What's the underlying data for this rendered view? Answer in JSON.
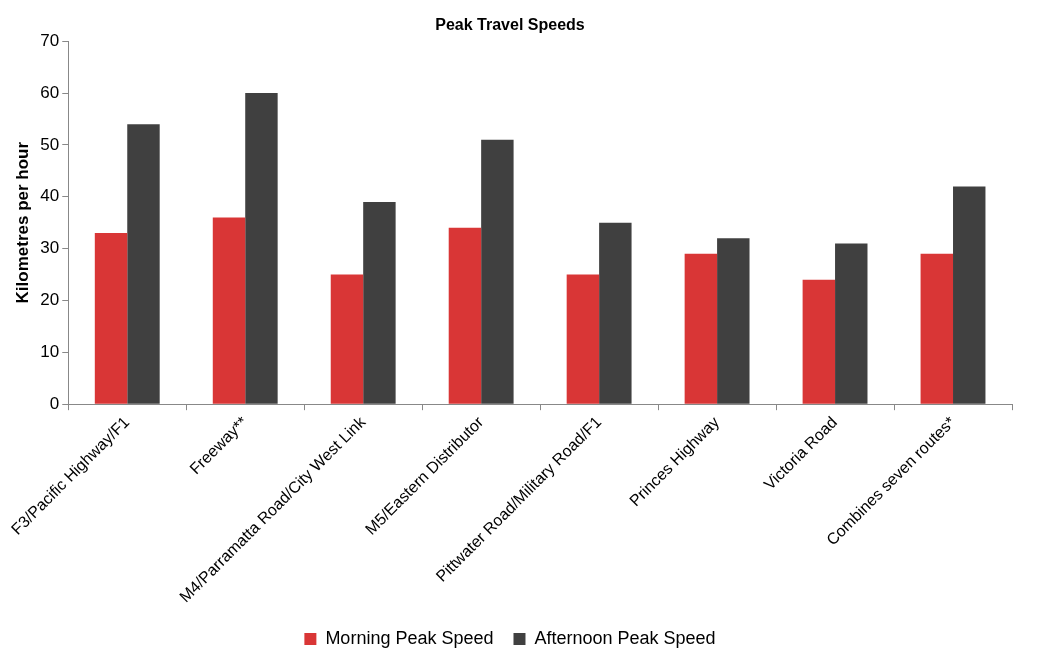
{
  "chart_data": {
    "type": "bar",
    "title": "Peak Travel Speeds",
    "ylabel": "Kilometres per hour",
    "categories": [
      "F3/Pacific Highway/F1",
      "Freeway**",
      "M4/Parramatta Road/City West Link",
      "M5/Eastern Distributor",
      "Pittwater Road/Military Road/F1",
      "Princes Highway",
      "Victoria Road",
      "Combines seven routes*"
    ],
    "series": [
      {
        "name": "Morning Peak Speed",
        "color": "#d93636",
        "values": [
          33,
          36,
          25,
          34,
          25,
          29,
          24,
          29
        ]
      },
      {
        "name": "Afternoon Peak Speed",
        "color": "#404040",
        "values": [
          54,
          60,
          39,
          51,
          35,
          32,
          31,
          42
        ]
      }
    ],
    "ylim": [
      0,
      70
    ],
    "yticks": [
      0,
      10,
      20,
      30,
      40,
      50,
      60,
      70
    ],
    "grid": false,
    "legend": "bottom"
  }
}
